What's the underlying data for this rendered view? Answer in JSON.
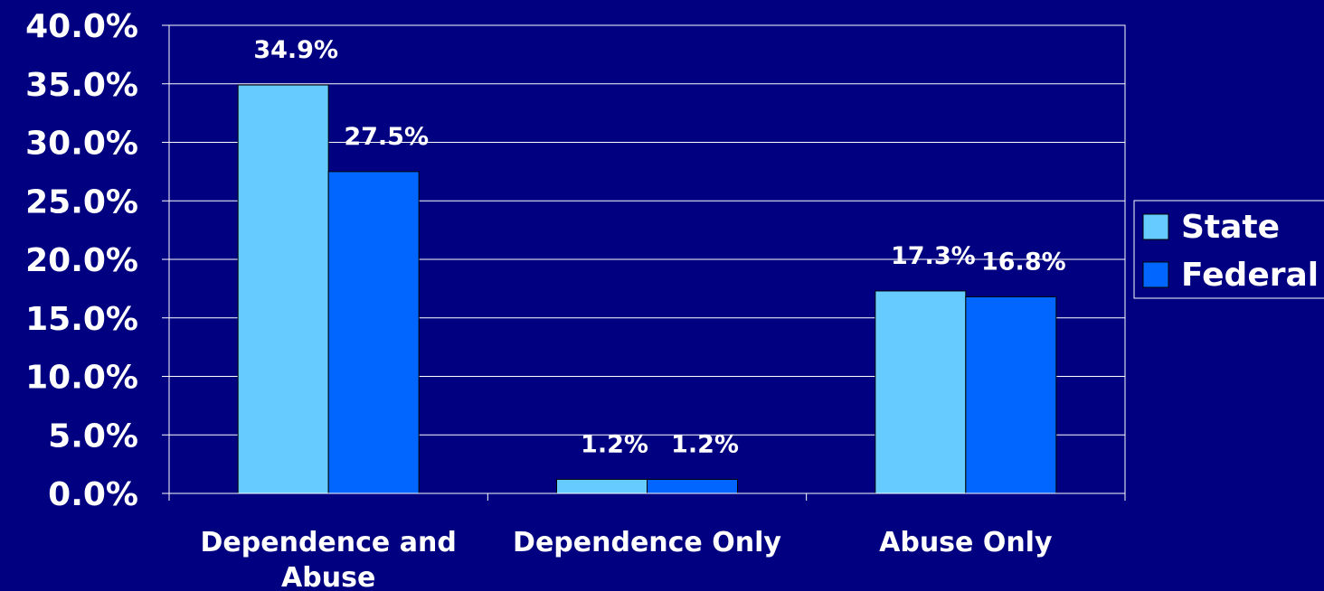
{
  "chart_data": {
    "type": "bar",
    "categories": [
      [
        "Dependence and",
        "Abuse"
      ],
      [
        "Dependence Only"
      ],
      [
        "Abuse Only"
      ]
    ],
    "series": [
      {
        "name": "State",
        "values": [
          34.9,
          1.2,
          17.3
        ],
        "labels": [
          "34.9%",
          "1.2%",
          "17.3%"
        ],
        "color": "#66CCFF"
      },
      {
        "name": "Federal",
        "values": [
          27.5,
          1.2,
          16.8
        ],
        "labels": [
          "27.5%",
          "1.2%",
          "16.8%"
        ],
        "color": "#0066FF"
      }
    ],
    "ylim": [
      0,
      40
    ],
    "yticks": [
      "0.0%",
      "5.0%",
      "10.0%",
      "15.0%",
      "20.0%",
      "25.0%",
      "30.0%",
      "35.0%",
      "40.0%"
    ],
    "grid": true,
    "legend_position": "right",
    "title": "",
    "xlabel": "",
    "ylabel": "",
    "colors": {
      "background": "#000080",
      "text": "#FFFFFF",
      "grid": "#FFFFFF"
    }
  }
}
